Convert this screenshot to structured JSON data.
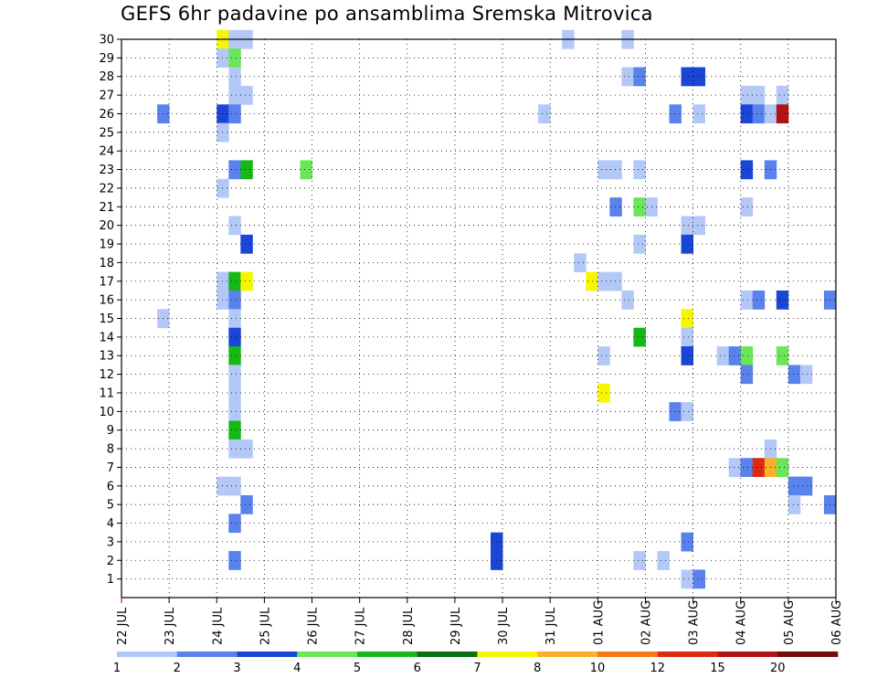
{
  "title": "GEFS 6hr padavine po ansamblima Sremska Mitrovica",
  "chart_data": {
    "type": "heatmap",
    "title": "GEFS 6hr padavine po ansamblima Sremska Mitrovica",
    "x_tick_labels": [
      "22 JUL",
      "23 JUL",
      "24 JUL",
      "25 JUL",
      "26 JUL",
      "27 JUL",
      "28 JUL",
      "29 JUL",
      "30 JUL",
      "31 JUL",
      "01 AUG",
      "02 AUG",
      "03 AUG",
      "04 AUG",
      "05 AUG",
      "06 AUG"
    ],
    "y_tick_labels": [
      "1",
      "2",
      "3",
      "4",
      "5",
      "6",
      "7",
      "8",
      "9",
      "10",
      "11",
      "12",
      "13",
      "14",
      "15",
      "16",
      "17",
      "18",
      "19",
      "20",
      "21",
      "22",
      "23",
      "24",
      "25",
      "26",
      "27",
      "28",
      "29",
      "30"
    ],
    "x_range_days": [
      0,
      15
    ],
    "y_range": [
      0,
      30
    ],
    "step_hours": 6,
    "grid": true,
    "colorbar": {
      "labels": [
        "1",
        "2",
        "3",
        "4",
        "5",
        "6",
        "7",
        "8",
        "10",
        "12",
        "15",
        "20"
      ],
      "colors": [
        "#b4c8f8",
        "#5a82ec",
        "#1a46d6",
        "#6ae658",
        "#16b816",
        "#0c6e14",
        "#f6f600",
        "#fab028",
        "#f87814",
        "#dc2a14",
        "#b01414",
        "#780a0a"
      ]
    },
    "cells": [
      [
        2,
        30,
        6
      ],
      [
        2.25,
        30,
        0
      ],
      [
        2.5,
        30,
        0
      ],
      [
        9.25,
        30,
        0
      ],
      [
        10.5,
        30,
        0
      ],
      [
        2,
        29,
        0
      ],
      [
        2.25,
        29,
        3
      ],
      [
        2.25,
        28,
        0
      ],
      [
        10.5,
        28,
        0
      ],
      [
        10.75,
        28,
        1
      ],
      [
        11.75,
        28,
        2
      ],
      [
        12,
        28,
        2
      ],
      [
        2.25,
        27,
        0
      ],
      [
        2.5,
        27,
        0
      ],
      [
        13,
        27,
        0
      ],
      [
        13.25,
        27,
        0
      ],
      [
        13.75,
        27,
        0
      ],
      [
        0.75,
        26,
        1
      ],
      [
        2,
        26,
        2
      ],
      [
        2.25,
        26,
        1
      ],
      [
        8.75,
        26,
        0
      ],
      [
        11.5,
        26,
        1
      ],
      [
        12,
        26,
        0
      ],
      [
        13,
        26,
        2
      ],
      [
        13.25,
        26,
        1
      ],
      [
        13.5,
        26,
        0
      ],
      [
        13.75,
        26,
        10
      ],
      [
        2,
        25,
        0
      ],
      [
        2.25,
        23,
        1
      ],
      [
        2.5,
        23,
        4
      ],
      [
        3.75,
        23,
        3
      ],
      [
        10,
        23,
        0
      ],
      [
        10.25,
        23,
        0
      ],
      [
        10.75,
        23,
        0
      ],
      [
        13,
        23,
        2
      ],
      [
        13.5,
        23,
        1
      ],
      [
        2,
        22,
        0
      ],
      [
        10.25,
        21,
        1
      ],
      [
        10.75,
        21,
        3
      ],
      [
        11,
        21,
        0
      ],
      [
        13,
        21,
        0
      ],
      [
        2.25,
        20,
        0
      ],
      [
        11.75,
        20,
        0
      ],
      [
        12,
        20,
        0
      ],
      [
        2.5,
        19,
        2
      ],
      [
        10.75,
        19,
        0
      ],
      [
        11.75,
        19,
        2
      ],
      [
        9.5,
        18,
        0
      ],
      [
        2,
        17,
        0
      ],
      [
        2.25,
        17,
        4
      ],
      [
        2.5,
        17,
        6
      ],
      [
        9.75,
        17,
        6
      ],
      [
        10,
        17,
        0
      ],
      [
        10.25,
        17,
        0
      ],
      [
        2,
        16,
        0
      ],
      [
        2.25,
        16,
        1
      ],
      [
        10.5,
        16,
        0
      ],
      [
        13,
        16,
        0
      ],
      [
        13.25,
        16,
        1
      ],
      [
        13.75,
        16,
        2
      ],
      [
        14.75,
        16,
        1
      ],
      [
        0.75,
        15,
        0
      ],
      [
        2.25,
        15,
        0
      ],
      [
        11.75,
        15,
        6
      ],
      [
        2.25,
        14,
        2
      ],
      [
        10.75,
        14,
        4
      ],
      [
        11.75,
        14,
        0
      ],
      [
        2.25,
        13,
        4
      ],
      [
        10,
        13,
        0
      ],
      [
        11.75,
        13,
        2
      ],
      [
        12.5,
        13,
        0
      ],
      [
        12.75,
        13,
        1
      ],
      [
        13,
        13,
        3
      ],
      [
        13.75,
        13,
        3
      ],
      [
        2.25,
        12,
        0
      ],
      [
        13,
        12,
        1
      ],
      [
        14,
        12,
        1
      ],
      [
        14.25,
        12,
        0
      ],
      [
        2.25,
        11,
        0
      ],
      [
        10,
        11,
        6
      ],
      [
        2.25,
        10,
        0
      ],
      [
        11.5,
        10,
        1
      ],
      [
        11.75,
        10,
        0
      ],
      [
        2.25,
        9,
        4
      ],
      [
        2.25,
        8,
        0
      ],
      [
        2.5,
        8,
        0
      ],
      [
        13.5,
        8,
        0
      ],
      [
        12.75,
        7,
        0
      ],
      [
        13,
        7,
        1
      ],
      [
        13.25,
        7,
        9
      ],
      [
        13.5,
        7,
        7
      ],
      [
        13.75,
        7,
        3
      ],
      [
        2,
        6,
        0
      ],
      [
        2.25,
        6,
        0
      ],
      [
        14,
        6,
        1
      ],
      [
        14.25,
        6,
        1
      ],
      [
        2.5,
        5,
        1
      ],
      [
        14,
        5,
        0
      ],
      [
        14.75,
        5,
        1
      ],
      [
        2.25,
        4,
        1
      ],
      [
        7.75,
        3,
        2
      ],
      [
        11.75,
        3,
        1
      ],
      [
        7.75,
        2,
        2
      ],
      [
        2.25,
        2,
        1
      ],
      [
        10.75,
        2,
        0
      ],
      [
        11.25,
        2,
        0
      ],
      [
        11.75,
        1,
        0
      ],
      [
        12,
        1,
        1
      ]
    ]
  }
}
